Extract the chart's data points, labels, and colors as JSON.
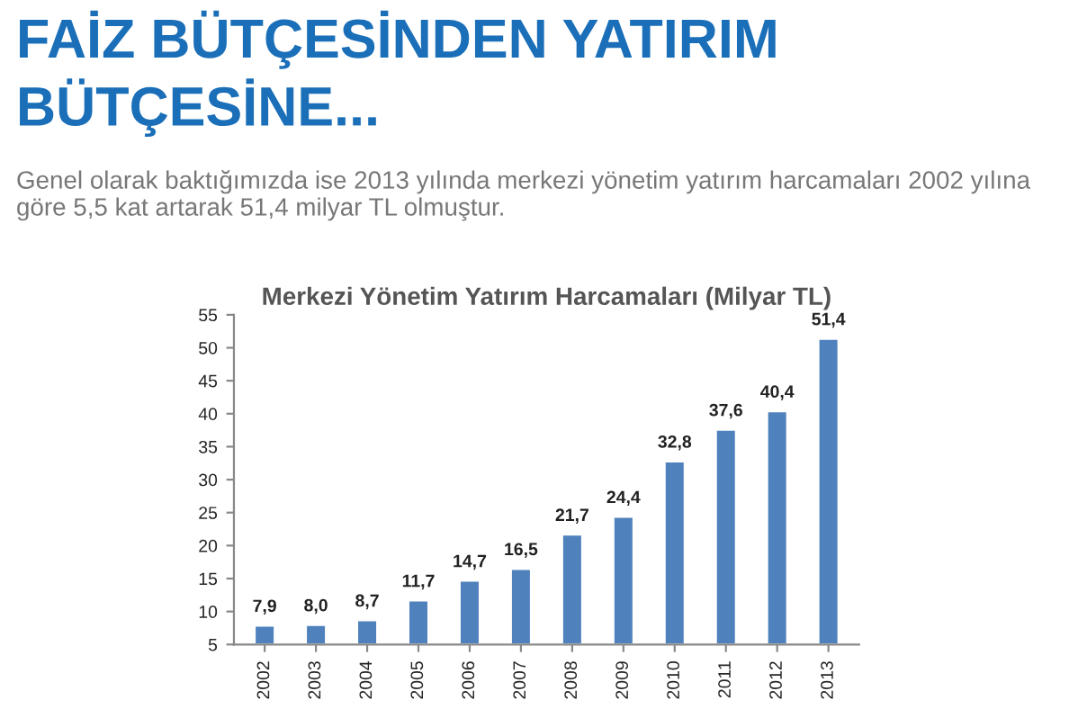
{
  "chart_data": {
    "type": "bar",
    "title": "Merkezi Yönetim Yatırım Harcamaları (Milyar TL)",
    "annotations": [
      "FAİZ BÜTÇESİNDEN YATIRIM BÜTÇESİNE...",
      "Genel olarak baktığımızda ise 2013 yılında merkezi yönetim yatırım harcamaları 2002 yılına göre 5,5 kat artarak 51,4 milyar TL olmuştur."
    ],
    "categories": [
      "2002",
      "2003",
      "2004",
      "2005",
      "2006",
      "2007",
      "2008",
      "2009",
      "2010",
      "2011",
      "2012",
      "2013"
    ],
    "values": [
      7.9,
      8.0,
      8.7,
      11.7,
      14.7,
      16.5,
      21.7,
      24.4,
      32.8,
      37.6,
      40.4,
      51.4
    ],
    "value_labels": [
      "7,9",
      "8,0",
      "8,7",
      "11,7",
      "14,7",
      "16,5",
      "21,7",
      "24,4",
      "32,8",
      "37,6",
      "40,4",
      "51,4"
    ],
    "color": "#4f81bd",
    "ylim": [
      5,
      55
    ],
    "yticks": [
      5,
      10,
      15,
      20,
      25,
      30,
      35,
      40,
      45,
      50,
      55
    ],
    "grid": false,
    "legend": false
  }
}
